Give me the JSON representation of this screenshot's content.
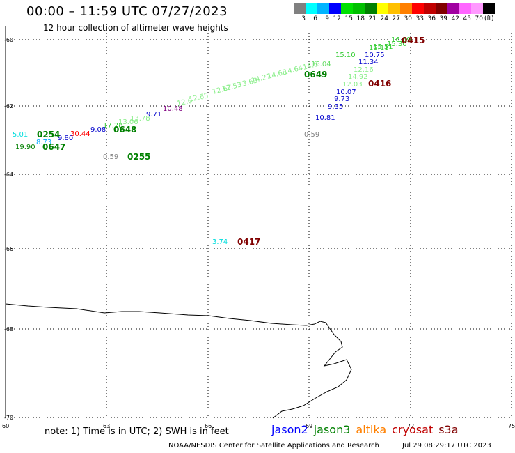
{
  "header": {
    "title": "00:00 – 11:59 UTC 07/27/2023",
    "subtitle": "12 hour collection of altimeter wave heights"
  },
  "legend": {
    "colors": [
      "#808080",
      "#00ffff",
      "#00b4ff",
      "#0000ff",
      "#00e000",
      "#00c000",
      "#008000",
      "#ffff00",
      "#ffc000",
      "#ff8000",
      "#ff0000",
      "#c00000",
      "#800000",
      "#a000a0",
      "#ff66ff",
      "#ff99ff",
      "#000000"
    ],
    "labels": [
      "3",
      "6",
      "9",
      "12",
      "15",
      "18",
      "21",
      "24",
      "27",
      "30",
      "33",
      "36",
      "39",
      "42",
      "45",
      "70"
    ],
    "unit": "(ft)"
  },
  "map": {
    "lat_ticks": [
      "-60",
      "-62",
      "-64",
      "-66",
      "-68",
      "-70"
    ],
    "lon_ticks": [
      "60",
      "63",
      "66",
      "69",
      "72",
      "75"
    ],
    "coast_color": "#000000",
    "grid_style": "dotted"
  },
  "observations": [
    {
      "value": "16.69",
      "color": "#33cc33"
    },
    {
      "value": "15.30",
      "color": "#33cc33"
    },
    {
      "value": "15.11",
      "color": "#33cc33"
    },
    {
      "value": "15.51",
      "color": "#33cc33"
    },
    {
      "value": "15.10",
      "color": "#33cc33"
    },
    {
      "value": "10.75",
      "color": "#0000cc"
    },
    {
      "value": "11.34",
      "color": "#0000cc"
    },
    {
      "value": "16.04",
      "color": "#66dd66"
    },
    {
      "value": "12.16",
      "color": "#88ee88"
    },
    {
      "value": "14.92",
      "color": "#88ee88"
    },
    {
      "value": "12.03",
      "color": "#88ee88"
    },
    {
      "value": "10.07",
      "color": "#0000cc"
    },
    {
      "value": "9.73",
      "color": "#0000cc"
    },
    {
      "value": "9.35",
      "color": "#0000cc"
    },
    {
      "value": "10.81",
      "color": "#0000cc"
    },
    {
      "value": "0.59",
      "color": "#808080"
    },
    {
      "value": "10.48",
      "color": "#800080"
    },
    {
      "value": "9.71",
      "color": "#0000cc"
    },
    {
      "value": "13.78",
      "color": "#88ee88"
    },
    {
      "value": "13.06",
      "color": "#88ee88"
    },
    {
      "value": "17.28",
      "color": "#33cc33"
    },
    {
      "value": "9.08",
      "color": "#0000cc"
    },
    {
      "value": "30.44",
      "color": "#ff0000"
    },
    {
      "value": "5.01",
      "color": "#00dddd"
    },
    {
      "value": "9.80",
      "color": "#0000cc"
    },
    {
      "value": "8.73",
      "color": "#00aaff"
    },
    {
      "value": "19.90",
      "color": "#008000"
    },
    {
      "value": "0.59",
      "color": "#808080"
    },
    {
      "value": "3.74",
      "color": "#00dddd"
    },
    {
      "value": "12.6",
      "color": "#88ee88"
    },
    {
      "value": "12.65",
      "color": "#88ee88"
    },
    {
      "value": "12.67",
      "color": "#88ee88"
    },
    {
      "value": "12.53",
      "color": "#88ee88"
    },
    {
      "value": "13.63",
      "color": "#88ee88"
    },
    {
      "value": "14.27",
      "color": "#88ee88"
    },
    {
      "value": "14.68",
      "color": "#88ee88"
    },
    {
      "value": "14.64",
      "color": "#88ee88"
    },
    {
      "value": "14.6",
      "color": "#88ee88"
    }
  ],
  "time_labels": [
    {
      "text": "0415",
      "color": "#800000"
    },
    {
      "text": "0416",
      "color": "#800000"
    },
    {
      "text": "0649",
      "color": "#008000"
    },
    {
      "text": "0648",
      "color": "#008000"
    },
    {
      "text": "0254",
      "color": "#008000"
    },
    {
      "text": "0647",
      "color": "#008000"
    },
    {
      "text": "0255",
      "color": "#008000"
    },
    {
      "text": "0417",
      "color": "#800000"
    }
  ],
  "footer": {
    "note": "note:  1) Time is in UTC;  2) SWH is in feet",
    "satellites": [
      {
        "name": "jason2",
        "color": "#0000ff"
      },
      {
        "name": "jason3",
        "color": "#008000"
      },
      {
        "name": "altika",
        "color": "#ff8000"
      },
      {
        "name": "cryosat",
        "color": "#c00000"
      },
      {
        "name": "s3a",
        "color": "#800000"
      }
    ],
    "credit": "NOAA/NESDIS Center for Satellite Applications and Research",
    "timestamp": "Jul 29 08:29:17 UTC 2023"
  }
}
